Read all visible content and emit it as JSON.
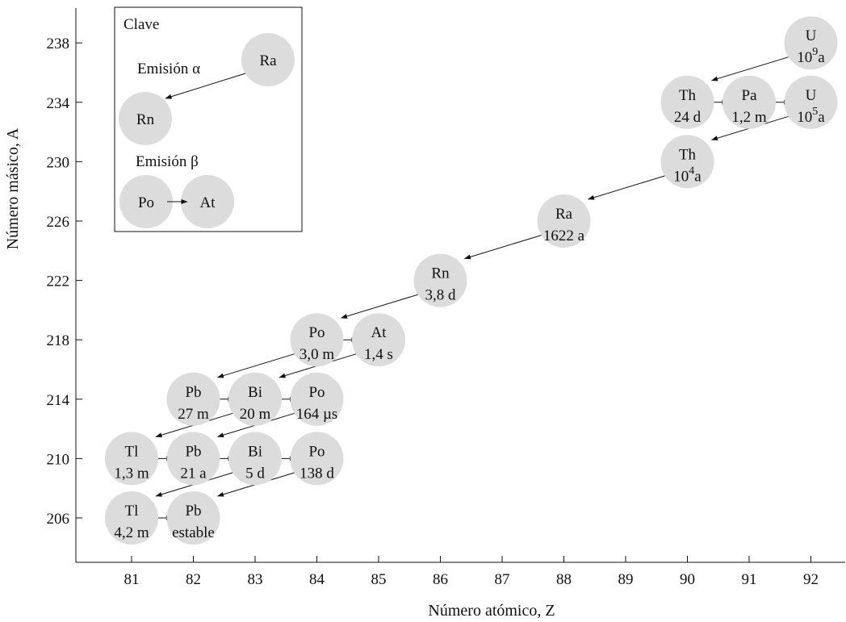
{
  "chart_data": {
    "type": "diagram",
    "xlabel": "Número atómico, Z",
    "ylabel": "Número másico, A",
    "x_ticks": [
      "81",
      "82",
      "83",
      "84",
      "85",
      "86",
      "87",
      "88",
      "89",
      "90",
      "91",
      "92"
    ],
    "y_ticks": [
      "206",
      "210",
      "214",
      "218",
      "222",
      "226",
      "230",
      "234",
      "238"
    ],
    "nuclides": [
      {
        "z": 92,
        "a": 238,
        "symbol": "U",
        "halflife": "10",
        "halflife_sup": "9",
        "halflife_unit": "a"
      },
      {
        "z": 90,
        "a": 234,
        "symbol": "Th",
        "halflife": "24 d"
      },
      {
        "z": 91,
        "a": 234,
        "symbol": "Pa",
        "halflife": "1,2 m"
      },
      {
        "z": 92,
        "a": 234,
        "symbol": "U",
        "halflife": "10",
        "halflife_sup": "5",
        "halflife_unit": "a"
      },
      {
        "z": 90,
        "a": 230,
        "symbol": "Th",
        "halflife": "10",
        "halflife_sup": "4",
        "halflife_unit": "a"
      },
      {
        "z": 88,
        "a": 226,
        "symbol": "Ra",
        "halflife": "1622 a"
      },
      {
        "z": 86,
        "a": 222,
        "symbol": "Rn",
        "halflife": "3,8 d"
      },
      {
        "z": 84,
        "a": 218,
        "symbol": "Po",
        "halflife": "3,0 m"
      },
      {
        "z": 85,
        "a": 218,
        "symbol": "At",
        "halflife": "1,4 s"
      },
      {
        "z": 82,
        "a": 214,
        "symbol": "Pb",
        "halflife": "27 m"
      },
      {
        "z": 83,
        "a": 214,
        "symbol": "Bi",
        "halflife": "20 m"
      },
      {
        "z": 84,
        "a": 214,
        "symbol": "Po",
        "halflife": "164 µs"
      },
      {
        "z": 81,
        "a": 210,
        "symbol": "Tl",
        "halflife": "1,3 m"
      },
      {
        "z": 82,
        "a": 210,
        "symbol": "Pb",
        "halflife": "21 a"
      },
      {
        "z": 83,
        "a": 210,
        "symbol": "Bi",
        "halflife": "5 d"
      },
      {
        "z": 84,
        "a": 210,
        "symbol": "Po",
        "halflife": "138 d"
      },
      {
        "z": 81,
        "a": 206,
        "symbol": "Tl",
        "halflife": "4,2 m"
      },
      {
        "z": 82,
        "a": 206,
        "symbol": "Pb",
        "halflife": "estable"
      }
    ],
    "transitions": [
      {
        "kind": "alpha",
        "from": [
          92,
          238
        ],
        "to": [
          90,
          234
        ]
      },
      {
        "kind": "beta",
        "from": [
          90,
          234
        ],
        "to": [
          91,
          234
        ]
      },
      {
        "kind": "beta",
        "from": [
          91,
          234
        ],
        "to": [
          92,
          234
        ]
      },
      {
        "kind": "alpha",
        "from": [
          92,
          234
        ],
        "to": [
          90,
          230
        ]
      },
      {
        "kind": "alpha",
        "from": [
          90,
          230
        ],
        "to": [
          88,
          226
        ]
      },
      {
        "kind": "alpha",
        "from": [
          88,
          226
        ],
        "to": [
          86,
          222
        ]
      },
      {
        "kind": "alpha",
        "from": [
          86,
          222
        ],
        "to": [
          84,
          218
        ]
      },
      {
        "kind": "beta",
        "from": [
          84,
          218
        ],
        "to": [
          85,
          218
        ]
      },
      {
        "kind": "alpha",
        "from": [
          84,
          218
        ],
        "to": [
          82,
          214
        ]
      },
      {
        "kind": "alpha",
        "from": [
          85,
          218
        ],
        "to": [
          83,
          214
        ]
      },
      {
        "kind": "beta",
        "from": [
          82,
          214
        ],
        "to": [
          83,
          214
        ]
      },
      {
        "kind": "beta",
        "from": [
          83,
          214
        ],
        "to": [
          84,
          214
        ]
      },
      {
        "kind": "alpha",
        "from": [
          83,
          214
        ],
        "to": [
          81,
          210
        ]
      },
      {
        "kind": "alpha",
        "from": [
          84,
          214
        ],
        "to": [
          82,
          210
        ]
      },
      {
        "kind": "beta",
        "from": [
          81,
          210
        ],
        "to": [
          82,
          210
        ]
      },
      {
        "kind": "beta",
        "from": [
          82,
          210
        ],
        "to": [
          83,
          210
        ]
      },
      {
        "kind": "beta",
        "from": [
          83,
          210
        ],
        "to": [
          84,
          210
        ]
      },
      {
        "kind": "alpha",
        "from": [
          83,
          210
        ],
        "to": [
          81,
          206
        ]
      },
      {
        "kind": "alpha",
        "from": [
          84,
          210
        ],
        "to": [
          82,
          206
        ]
      },
      {
        "kind": "beta",
        "from": [
          81,
          206
        ],
        "to": [
          82,
          206
        ]
      }
    ],
    "legend": {
      "title": "Clave",
      "alpha_label": "Emisión",
      "alpha_symbol": "α",
      "alpha_from": "Ra",
      "alpha_to": "Rn",
      "beta_label": "Emisión",
      "beta_symbol": "β",
      "beta_from": "Po",
      "beta_to": "At"
    },
    "colors": {
      "nuclide_fill": "#dcdcdc",
      "ink": "#111111"
    }
  }
}
